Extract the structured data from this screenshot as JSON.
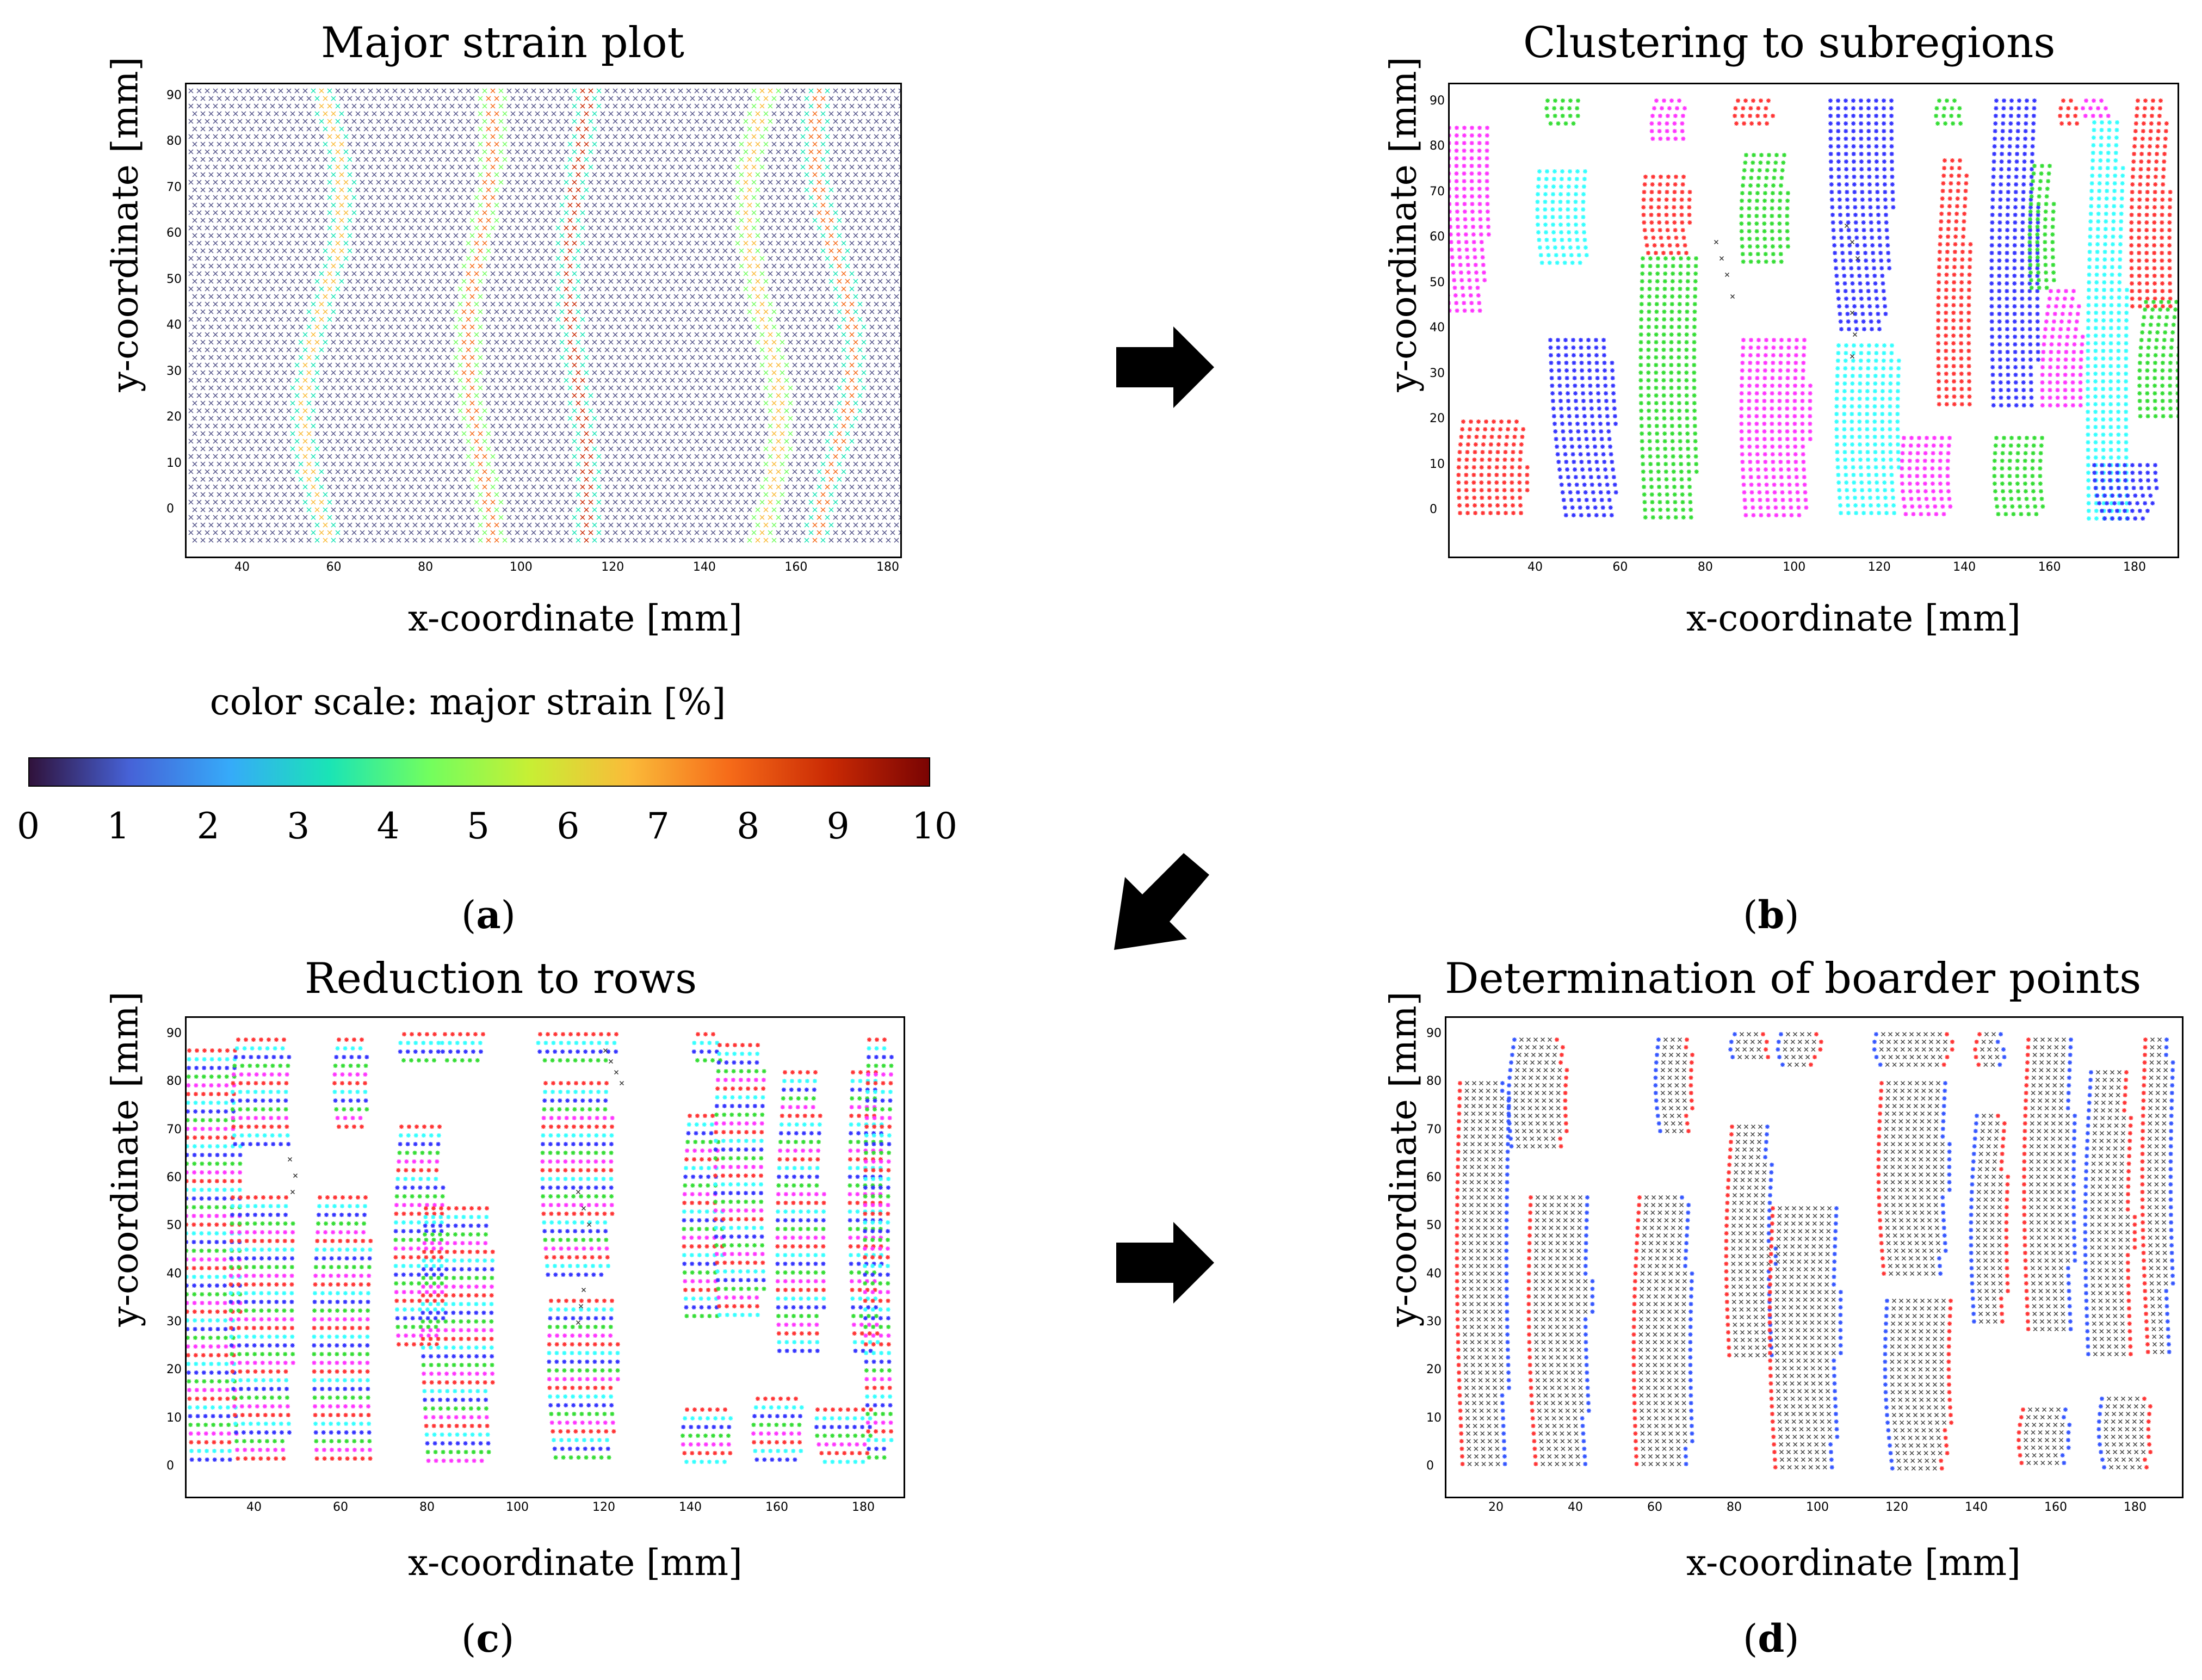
{
  "panels": {
    "a": {
      "title": "Major strain plot",
      "xlabel": "x-coordinate [mm]",
      "ylabel": "y-coordinate [mm]",
      "caption_letter": "a",
      "xticks": [
        "40",
        "60",
        "80",
        "100",
        "120",
        "140",
        "160",
        "180"
      ],
      "yticks": [
        "0",
        "10",
        "20",
        "30",
        "40",
        "50",
        "60",
        "70",
        "80",
        "90"
      ]
    },
    "b": {
      "title": "Clustering to subregions",
      "xlabel": "x-coordinate [mm]",
      "ylabel": "y-coordinate [mm]",
      "caption_letter": "b",
      "xticks": [
        "40",
        "60",
        "80",
        "100",
        "120",
        "140",
        "160",
        "180"
      ],
      "yticks": [
        "0",
        "10",
        "20",
        "30",
        "40",
        "50",
        "60",
        "70",
        "80",
        "90"
      ]
    },
    "c": {
      "title": "Reduction to rows",
      "xlabel": "x-coordinate [mm]",
      "ylabel": "y-coordinate [mm]",
      "caption_letter": "c",
      "xticks": [
        "40",
        "60",
        "80",
        "100",
        "120",
        "140",
        "160",
        "180"
      ],
      "yticks": [
        "0",
        "10",
        "20",
        "30",
        "40",
        "50",
        "60",
        "70",
        "80",
        "90"
      ]
    },
    "d": {
      "title": "Determination of boarder points",
      "xlabel": "x-coordinate [mm]",
      "ylabel": "y-coordinate [mm]",
      "caption_letter": "d",
      "xticks": [
        "20",
        "40",
        "60",
        "80",
        "100",
        "120",
        "140",
        "160",
        "180"
      ],
      "yticks": [
        "0",
        "10",
        "20",
        "30",
        "40",
        "50",
        "60",
        "70",
        "80",
        "90"
      ]
    }
  },
  "colorbar": {
    "label": "color scale: major strain [%]",
    "ticks": [
      "0",
      "1",
      "2",
      "3",
      "4",
      "5",
      "6",
      "7",
      "8",
      "9",
      "10"
    ],
    "colors": [
      "#30123b",
      "#4662d7",
      "#36aaf9",
      "#1ae4b6",
      "#72fe5e",
      "#c7ef34",
      "#fabb39",
      "#f66b19",
      "#ca2a04",
      "#7a0403"
    ]
  },
  "icons": {
    "flow_arrow": "arrow-right-icon",
    "flow_arrow_diag": "arrow-down-left-icon"
  },
  "cluster_colors": [
    "#ff3333",
    "#3333ff",
    "#33dd33",
    "#ff33ff",
    "#33ffff"
  ]
}
